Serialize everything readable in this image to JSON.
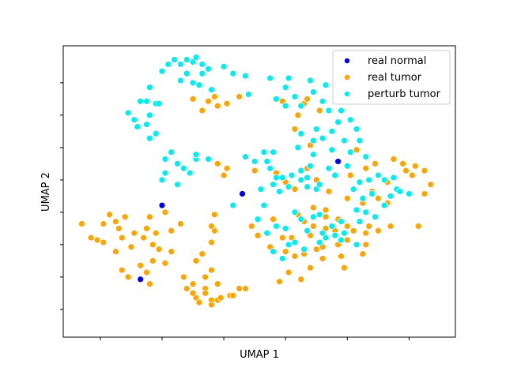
{
  "chart_data": {
    "type": "scatter",
    "xlabel": "UMAP 1",
    "ylabel": "UMAP 2",
    "xlim": [
      -2.2,
      10.5
    ],
    "ylim": [
      -1.2,
      11.4
    ],
    "x_ticks": [
      -1,
      1,
      3,
      5,
      7,
      9,
      11
    ],
    "y_ticks": [
      0,
      1.4,
      2.8,
      4.2,
      5.6,
      7,
      8.4,
      9.8
    ],
    "show_tick_labels": false,
    "grid": false,
    "legend_position": "upper right",
    "series": [
      {
        "name": "real normal",
        "color": "#0000ee",
        "points": [
          [
            1.0,
            4.5
          ],
          [
            0.3,
            1.3
          ],
          [
            3.6,
            5.0
          ],
          [
            6.7,
            6.4
          ]
        ]
      },
      {
        "name": "real tumor",
        "color": "#ffa500",
        "points": [
          [
            -1.6,
            3.7
          ],
          [
            -1.3,
            3.1
          ],
          [
            -1.1,
            3.0
          ],
          [
            -0.7,
            4.1
          ],
          [
            -0.9,
            3.7
          ],
          [
            -0.9,
            2.9
          ],
          [
            -0.5,
            3.8
          ],
          [
            -0.4,
            3.5
          ],
          [
            -0.2,
            4.0
          ],
          [
            -0.3,
            3.1
          ],
          [
            0.0,
            2.7
          ],
          [
            0.1,
            3.3
          ],
          [
            0.4,
            3.1
          ],
          [
            0.5,
            3.5
          ],
          [
            0.6,
            4.0
          ],
          [
            0.7,
            2.8
          ],
          [
            0.8,
            3.3
          ],
          [
            0.9,
            2.6
          ],
          [
            1.1,
            4.2
          ],
          [
            1.3,
            3.4
          ],
          [
            1.6,
            3.7
          ],
          [
            1.1,
            2.0
          ],
          [
            1.3,
            2.5
          ],
          [
            0.7,
            2.1
          ],
          [
            0.5,
            1.6
          ],
          [
            0.3,
            1.9
          ],
          [
            -0.5,
            2.5
          ],
          [
            -0.3,
            1.7
          ],
          [
            -0.1,
            1.4
          ],
          [
            0.6,
            1.1
          ],
          [
            1.7,
            1.4
          ],
          [
            1.8,
            0.9
          ],
          [
            2.1,
            2.1
          ],
          [
            2.3,
            2.4
          ],
          [
            2.4,
            1.4
          ],
          [
            2.4,
            0.9
          ],
          [
            2.6,
            1.7
          ],
          [
            2.6,
            2.9
          ],
          [
            2.7,
            3.4
          ],
          [
            2.6,
            3.6
          ],
          [
            2.7,
            4.1
          ],
          [
            2.4,
            0.7
          ],
          [
            2.0,
            0.7
          ],
          [
            2.0,
            1.1
          ],
          [
            2.1,
            0.5
          ],
          [
            2.2,
            0.3
          ],
          [
            2.6,
            0.4
          ],
          [
            2.8,
            0.4
          ],
          [
            2.8,
            1.1
          ],
          [
            3.2,
            0.6
          ],
          [
            3.3,
            0.6
          ],
          [
            3.5,
            0.9
          ],
          [
            3.7,
            0.9
          ],
          [
            2.6,
            0.2
          ],
          [
            2.9,
            0.5
          ],
          [
            2.0,
            9.1
          ],
          [
            2.5,
            9.0
          ],
          [
            2.7,
            9.2
          ],
          [
            2.3,
            8.6
          ],
          [
            2.8,
            8.8
          ],
          [
            3.1,
            8.9
          ],
          [
            3.5,
            9.2
          ],
          [
            4.9,
            9.0
          ],
          [
            5.6,
            8.9
          ],
          [
            5.4,
            8.4
          ],
          [
            5.7,
            9.1
          ],
          [
            6.1,
            8.6
          ],
          [
            5.3,
            7.8
          ],
          [
            5.8,
            7.1
          ],
          [
            2.8,
            6.3
          ],
          [
            3.0,
            5.8
          ],
          [
            3.1,
            6.1
          ],
          [
            4.0,
            6.0
          ],
          [
            4.7,
            5.9
          ],
          [
            5.0,
            5.5
          ],
          [
            5.3,
            5.2
          ],
          [
            5.7,
            6.1
          ],
          [
            6.0,
            5.6
          ],
          [
            6.4,
            5.1
          ],
          [
            7.1,
            5.8
          ],
          [
            7.3,
            6.9
          ],
          [
            7.6,
            6.1
          ],
          [
            7.9,
            6.3
          ],
          [
            8.5,
            6.5
          ],
          [
            8.8,
            6.3
          ],
          [
            8.3,
            5.5
          ],
          [
            7.8,
            5.1
          ],
          [
            8.0,
            4.8
          ],
          [
            8.3,
            4.6
          ],
          [
            7.5,
            4.6
          ],
          [
            7.0,
            4.8
          ],
          [
            6.3,
            4.3
          ],
          [
            5.9,
            4.4
          ],
          [
            5.4,
            4.1
          ],
          [
            5.6,
            3.8
          ],
          [
            5.9,
            3.6
          ],
          [
            6.3,
            4.0
          ],
          [
            6.7,
            3.9
          ],
          [
            7.0,
            3.6
          ],
          [
            7.2,
            3.4
          ],
          [
            7.6,
            3.3
          ],
          [
            7.7,
            3.6
          ],
          [
            8.0,
            3.4
          ],
          [
            7.0,
            3.0
          ],
          [
            6.7,
            2.8
          ],
          [
            6.2,
            2.7
          ],
          [
            5.6,
            2.4
          ],
          [
            5.3,
            2.3
          ],
          [
            5.0,
            2.5
          ],
          [
            4.5,
            2.7
          ],
          [
            4.1,
            3.2
          ],
          [
            3.9,
            3.6
          ],
          [
            4.6,
            3.9
          ],
          [
            4.9,
            3.1
          ],
          [
            5.2,
            3.1
          ],
          [
            5.8,
            3.2
          ],
          [
            6.3,
            3.5
          ],
          [
            6.6,
            3.4
          ],
          [
            6.0,
            2.6
          ],
          [
            8.4,
            3.6
          ],
          [
            9.3,
            3.6
          ],
          [
            9.2,
            6.2
          ],
          [
            9.5,
            6.0
          ],
          [
            9.1,
            5.8
          ],
          [
            9.7,
            5.4
          ],
          [
            9.5,
            5.0
          ],
          [
            8.9,
            6.0
          ],
          [
            7.6,
            2.8
          ],
          [
            7.5,
            2.4
          ],
          [
            6.9,
            1.8
          ],
          [
            6.2,
            2.2
          ],
          [
            6.8,
            2.3
          ],
          [
            5.8,
            1.8
          ],
          [
            5.5,
            1.3
          ],
          [
            5.1,
            1.6
          ],
          [
            4.8,
            1.2
          ]
        ]
      },
      {
        "name": "perturb tumor",
        "color": "#00eeee",
        "points": [
          [
            1.0,
            10.3
          ],
          [
            1.2,
            10.6
          ],
          [
            1.4,
            10.8
          ],
          [
            1.6,
            10.6
          ],
          [
            1.8,
            10.8
          ],
          [
            2.0,
            10.7
          ],
          [
            2.1,
            10.9
          ],
          [
            2.3,
            10.6
          ],
          [
            2.5,
            10.4
          ],
          [
            2.3,
            10.2
          ],
          [
            1.8,
            10.2
          ],
          [
            1.6,
            9.9
          ],
          [
            2.0,
            9.8
          ],
          [
            2.2,
            9.7
          ],
          [
            2.6,
            9.5
          ],
          [
            3.0,
            10.5
          ],
          [
            3.3,
            10.2
          ],
          [
            3.7,
            10.1
          ],
          [
            3.8,
            9.3
          ],
          [
            0.6,
            9.6
          ],
          [
            0.3,
            9.0
          ],
          [
            0.5,
            9.0
          ],
          [
            -0.1,
            8.5
          ],
          [
            0.1,
            8.2
          ],
          [
            0.2,
            7.9
          ],
          [
            0.5,
            8.0
          ],
          [
            0.6,
            8.4
          ],
          [
            0.8,
            8.9
          ],
          [
            0.9,
            8.9
          ],
          [
            0.6,
            7.4
          ],
          [
            0.8,
            7.6
          ],
          [
            1.1,
            6.5
          ],
          [
            1.3,
            6.8
          ],
          [
            1.5,
            6.3
          ],
          [
            1.0,
            5.6
          ],
          [
            1.1,
            5.9
          ],
          [
            1.9,
            5.9
          ],
          [
            1.7,
            6.1
          ],
          [
            2.1,
            6.5
          ],
          [
            4.0,
            6.4
          ],
          [
            4.3,
            6.8
          ],
          [
            4.6,
            6.8
          ],
          [
            4.5,
            6.1
          ],
          [
            4.9,
            5.7
          ],
          [
            5.2,
            5.8
          ],
          [
            5.5,
            6.0
          ],
          [
            5.8,
            6.2
          ],
          [
            4.6,
            5.4
          ],
          [
            4.1,
            3.9
          ],
          [
            4.3,
            4.5
          ],
          [
            3.3,
            4.5
          ],
          [
            5.5,
            5.6
          ],
          [
            5.1,
            5.3
          ],
          [
            5.7,
            5.3
          ],
          [
            6.0,
            5.2
          ],
          [
            6.1,
            5.4
          ],
          [
            6.4,
            6.1
          ],
          [
            6.6,
            5.8
          ],
          [
            7.0,
            6.2
          ],
          [
            7.2,
            5.2
          ],
          [
            7.4,
            5.5
          ],
          [
            7.7,
            5.6
          ],
          [
            8.0,
            5.8
          ],
          [
            8.6,
            5.2
          ],
          [
            8.4,
            4.9
          ],
          [
            9.0,
            5.0
          ],
          [
            8.2,
            4.5
          ],
          [
            7.9,
            4.0
          ],
          [
            7.6,
            4.2
          ],
          [
            7.3,
            4.3
          ],
          [
            7.4,
            3.8
          ],
          [
            6.8,
            3.8
          ],
          [
            6.5,
            3.6
          ],
          [
            6.1,
            4.1
          ],
          [
            5.7,
            3.4
          ],
          [
            5.9,
            4.0
          ],
          [
            6.6,
            3.2
          ],
          [
            6.9,
            3.3
          ],
          [
            6.3,
            3.1
          ],
          [
            5.5,
            3.9
          ],
          [
            5.3,
            4.2
          ],
          [
            5.0,
            3.5
          ],
          [
            4.7,
            3.6
          ],
          [
            4.4,
            3.3
          ],
          [
            4.9,
            2.2
          ],
          [
            4.6,
            2.5
          ],
          [
            5.1,
            2.8
          ],
          [
            5.3,
            2.9
          ],
          [
            5.6,
            2.6
          ],
          [
            6.1,
            2.9
          ],
          [
            6.2,
            3.3
          ],
          [
            6.8,
            3.0
          ],
          [
            7.3,
            2.8
          ],
          [
            7.5,
            4.8
          ],
          [
            7.8,
            5.0
          ],
          [
            5.3,
            9.2
          ],
          [
            5.0,
            9.6
          ],
          [
            5.5,
            8.8
          ],
          [
            5.9,
            9.4
          ],
          [
            6.2,
            9.0
          ],
          [
            6.4,
            8.6
          ],
          [
            6.7,
            8.1
          ],
          [
            6.5,
            7.7
          ],
          [
            7.1,
            8.2
          ],
          [
            7.3,
            7.8
          ],
          [
            7.4,
            7.3
          ],
          [
            7.6,
            6.6
          ],
          [
            7.1,
            6.8
          ],
          [
            6.9,
            7.3
          ],
          [
            6.5,
            6.9
          ],
          [
            6.2,
            7.4
          ],
          [
            6.0,
            7.8
          ],
          [
            5.5,
            7.6
          ],
          [
            5.4,
            7.0
          ],
          [
            5.9,
            6.7
          ],
          [
            6.8,
            8.6
          ],
          [
            6.3,
            9.7
          ],
          [
            5.8,
            9.9
          ],
          [
            5.1,
            10.0
          ],
          [
            4.5,
            10.0
          ],
          [
            4.7,
            9.1
          ],
          [
            5.0,
            8.8
          ],
          [
            5.9,
            7.3
          ],
          [
            5.7,
            5.7
          ],
          [
            4.2,
            5.2
          ],
          [
            2.1,
            6.7
          ],
          [
            2.5,
            6.5
          ],
          [
            1.5,
            5.4
          ],
          [
            3.7,
            6.6
          ],
          [
            4.4,
            6.4
          ],
          [
            4.7,
            5.7
          ],
          [
            4.8,
            5.1
          ],
          [
            8.2,
            5.6
          ],
          [
            8.5,
            5.7
          ],
          [
            8.7,
            5.1
          ]
        ]
      }
    ]
  }
}
